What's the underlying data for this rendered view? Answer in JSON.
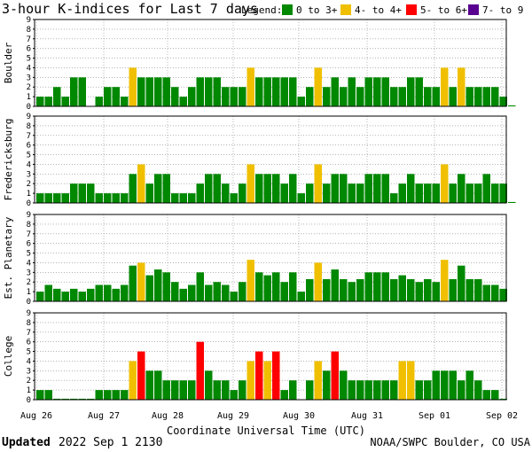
{
  "page": {
    "title": "3-hour K-indices for Last 7 days",
    "legend_label": "Legend:",
    "updated_label": "Updated",
    "updated_value": "2022 Sep  1 2130",
    "credit": "NOAA/SWPC Boulder, CO USA"
  },
  "colors": {
    "green": "#008800",
    "yellow": "#f0c000",
    "red": "#ff0000",
    "purple": "#5a0090",
    "grid": "#888888"
  },
  "chart_data": {
    "type": "bar",
    "title": "3-hour K-indices for Last 7 days",
    "xlabel": "Coordinate Universal Time (UTC)",
    "ylim": [
      0,
      9
    ],
    "yticks": [
      "0",
      "1",
      "2",
      "3",
      "4",
      "5",
      "6",
      "7",
      "8",
      "9"
    ],
    "x_ticks": [
      "Aug 26",
      "Aug 27",
      "Aug 28",
      "Aug 29",
      "Aug 30",
      "Aug 31",
      "Sep 01",
      "Sep 02"
    ],
    "legend": [
      {
        "label": "0 to 3+",
        "color": "#008800",
        "min": 0,
        "max": 3.99
      },
      {
        "label": "4- to 4+",
        "color": "#f0c000",
        "min": 4,
        "max": 4.99
      },
      {
        "label": "5- to 6+",
        "color": "#ff0000",
        "min": 5,
        "max": 6.99
      },
      {
        "label": "7- to 9",
        "color": "#5a0090",
        "min": 7,
        "max": 9
      }
    ],
    "bars_per_day": 8,
    "panels": [
      {
        "name": "Boulder",
        "values": [
          1,
          1,
          2,
          1,
          3,
          3,
          0,
          1,
          2,
          2,
          1,
          4,
          3,
          3,
          3,
          3,
          2,
          1,
          2,
          3,
          3,
          3,
          2,
          2,
          2,
          4,
          3,
          3,
          3,
          3,
          3,
          1,
          2,
          4,
          2,
          3,
          2,
          3,
          2,
          3,
          3,
          3,
          2,
          2,
          3,
          3,
          2,
          2,
          4,
          2,
          4,
          2,
          2,
          2,
          2,
          1,
          0.1
        ]
      },
      {
        "name": "Fredericksburg",
        "values": [
          1,
          1,
          1,
          1,
          2,
          2,
          2,
          1,
          1,
          1,
          1,
          3,
          4,
          2,
          3,
          3,
          1,
          1,
          1,
          2,
          3,
          3,
          2,
          1,
          2,
          4,
          3,
          3,
          3,
          2,
          3,
          1,
          2,
          4,
          2,
          3,
          3,
          2,
          2,
          3,
          3,
          3,
          1,
          2,
          3,
          2,
          2,
          2,
          4,
          2,
          3,
          2,
          2,
          3,
          2,
          2,
          0.1
        ]
      },
      {
        "name": "Est. Planetary",
        "values": [
          1,
          1.7,
          1.3,
          1,
          1.3,
          1,
          1.3,
          1.7,
          1.7,
          1.3,
          1.7,
          3.7,
          4,
          2.7,
          3.3,
          3,
          2,
          1.3,
          1.7,
          3,
          1.7,
          2,
          1.7,
          1,
          2,
          4.3,
          3,
          2.7,
          3,
          2,
          3,
          1,
          2.3,
          4,
          2.3,
          3.3,
          2.3,
          2,
          2.3,
          3,
          3,
          3,
          2.3,
          2.7,
          2.3,
          2,
          2.3,
          2,
          4.3,
          2.3,
          3.7,
          2.3,
          2.3,
          1.7,
          1.7,
          1.3
        ]
      },
      {
        "name": "College",
        "values": [
          1,
          1,
          0.1,
          0.1,
          0.1,
          0.1,
          0.1,
          1,
          1,
          1,
          1,
          4,
          5,
          3,
          3,
          2,
          2,
          2,
          2,
          6,
          3,
          2,
          2,
          1,
          2,
          4,
          5,
          4,
          5,
          1,
          2,
          0,
          2,
          4,
          3,
          5,
          3,
          2,
          2,
          2,
          2,
          2,
          2,
          4,
          4,
          2,
          2,
          3,
          3,
          3,
          2,
          3,
          2,
          1,
          1,
          0.1
        ]
      }
    ]
  }
}
